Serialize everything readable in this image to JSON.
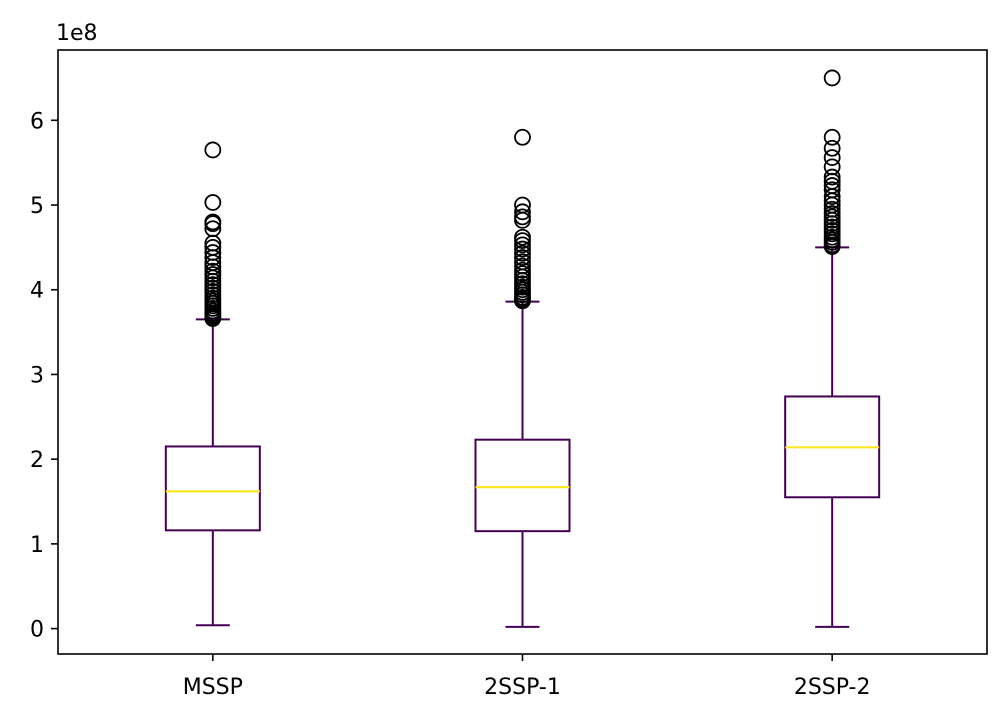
{
  "chart_data": {
    "type": "box",
    "title": "",
    "xlabel": "",
    "ylabel": "",
    "scale_label": "1e8",
    "y_scale": 100000000,
    "ylim": [
      -0.3,
      6.83
    ],
    "y_ticks": [
      0,
      1,
      2,
      3,
      4,
      5,
      6
    ],
    "grid": false,
    "colors": {
      "box": "#440154",
      "median": "#fde725",
      "flier": "#000000"
    },
    "categories": [
      "MSSP",
      "2SSP-1",
      "2SSP-2"
    ],
    "boxes": [
      {
        "label": "MSSP",
        "whisker_low": 0.04,
        "q1": 1.16,
        "median": 1.62,
        "q3": 2.15,
        "whisker_high": 3.65,
        "fliers": [
          3.66,
          3.68,
          3.7,
          3.72,
          3.75,
          3.78,
          3.81,
          3.84,
          3.87,
          3.9,
          3.94,
          3.98,
          4.02,
          4.06,
          4.1,
          4.14,
          4.18,
          4.22,
          4.27,
          4.32,
          4.38,
          4.44,
          4.5,
          4.55,
          4.72,
          4.78,
          4.8,
          5.03,
          5.65
        ]
      },
      {
        "label": "2SSP-1",
        "whisker_low": 0.02,
        "q1": 1.15,
        "median": 1.67,
        "q3": 2.23,
        "whisker_high": 3.86,
        "fliers": [
          3.87,
          3.89,
          3.91,
          3.94,
          3.97,
          4.0,
          4.03,
          4.07,
          4.11,
          4.15,
          4.19,
          4.23,
          4.28,
          4.33,
          4.38,
          4.43,
          4.48,
          4.53,
          4.58,
          4.62,
          4.82,
          4.86,
          4.92,
          5.0,
          5.8
        ]
      },
      {
        "label": "2SSP-2",
        "whisker_low": 0.02,
        "q1": 1.55,
        "median": 2.14,
        "q3": 2.74,
        "whisker_high": 4.5,
        "fliers": [
          4.51,
          4.53,
          4.56,
          4.59,
          4.62,
          4.66,
          4.7,
          4.74,
          4.78,
          4.82,
          4.86,
          4.9,
          4.95,
          5.0,
          5.05,
          5.1,
          5.18,
          5.23,
          5.28,
          5.33,
          5.45,
          5.56,
          5.67,
          5.8,
          6.5
        ]
      }
    ]
  }
}
